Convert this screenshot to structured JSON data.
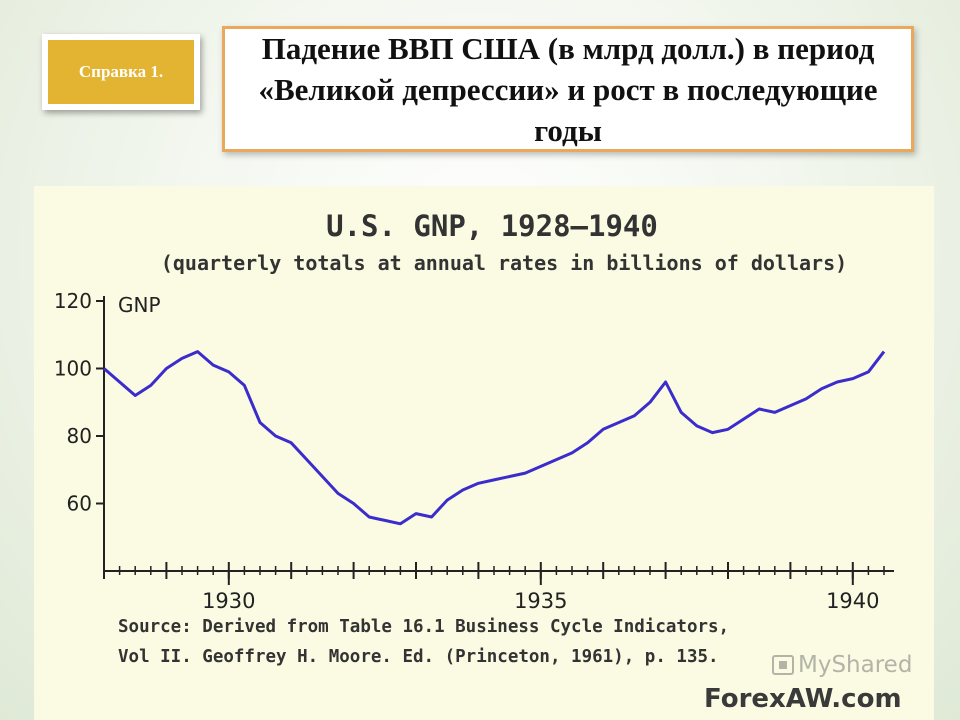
{
  "badge": {
    "label": "Справка 1."
  },
  "slide_title": "Падение ВВП США (в млрд долл.) в период «Великой депрессии» и рост в последующие годы",
  "watermarks": {
    "myshared": "MyShared",
    "forexaw": "ForexAW.com"
  },
  "colors": {
    "line": "#3b2ccc",
    "axis": "#222222",
    "badge": "#e2b432",
    "title_border": "#e9a85c",
    "panel": "#fbfbe3"
  },
  "chart_data": {
    "type": "line",
    "title": "U.S. GNP, 1928–1940",
    "subtitle": "(quarterly totals at annual rates in billions of dollars)",
    "ylabel": "GNP",
    "xlabel": "",
    "ylim": [
      40,
      120
    ],
    "xlim": [
      1928,
      1940.5
    ],
    "yticks": [
      60,
      80,
      100,
      120
    ],
    "xticks": [
      1930,
      1935,
      1940
    ],
    "grid": false,
    "source_lines": [
      "Source: Derived from Table 16.1 Business Cycle Indicators,",
      "Vol II. Geoffrey H. Moore. Ed. (Princeton, 1961), p. 135."
    ],
    "series": [
      {
        "x": [
          1928.0,
          1928.25,
          1928.5,
          1928.75,
          1929.0,
          1929.25,
          1929.5,
          1929.75,
          1930.0,
          1930.25,
          1930.5,
          1930.75,
          1931.0,
          1931.25,
          1931.5,
          1931.75,
          1932.0,
          1932.25,
          1932.5,
          1932.75,
          1933.0,
          1933.25,
          1933.5,
          1933.75,
          1934.0,
          1934.25,
          1934.5,
          1934.75,
          1935.0,
          1935.25,
          1935.5,
          1935.75,
          1936.0,
          1936.25,
          1936.5,
          1936.75,
          1937.0,
          1937.25,
          1937.5,
          1937.75,
          1938.0,
          1938.25,
          1938.5,
          1938.75,
          1939.0,
          1939.25,
          1939.5,
          1939.75,
          1940.0,
          1940.25,
          1940.5
        ],
        "values": [
          100,
          96,
          92,
          95,
          100,
          103,
          105,
          101,
          99,
          95,
          84,
          80,
          78,
          73,
          68,
          63,
          60,
          56,
          55,
          54,
          57,
          56,
          61,
          64,
          66,
          67,
          68,
          69,
          71,
          73,
          75,
          78,
          82,
          84,
          86,
          90,
          96,
          87,
          83,
          81,
          82,
          85,
          88,
          87,
          89,
          91,
          94,
          96,
          97,
          99,
          105
        ]
      }
    ]
  }
}
